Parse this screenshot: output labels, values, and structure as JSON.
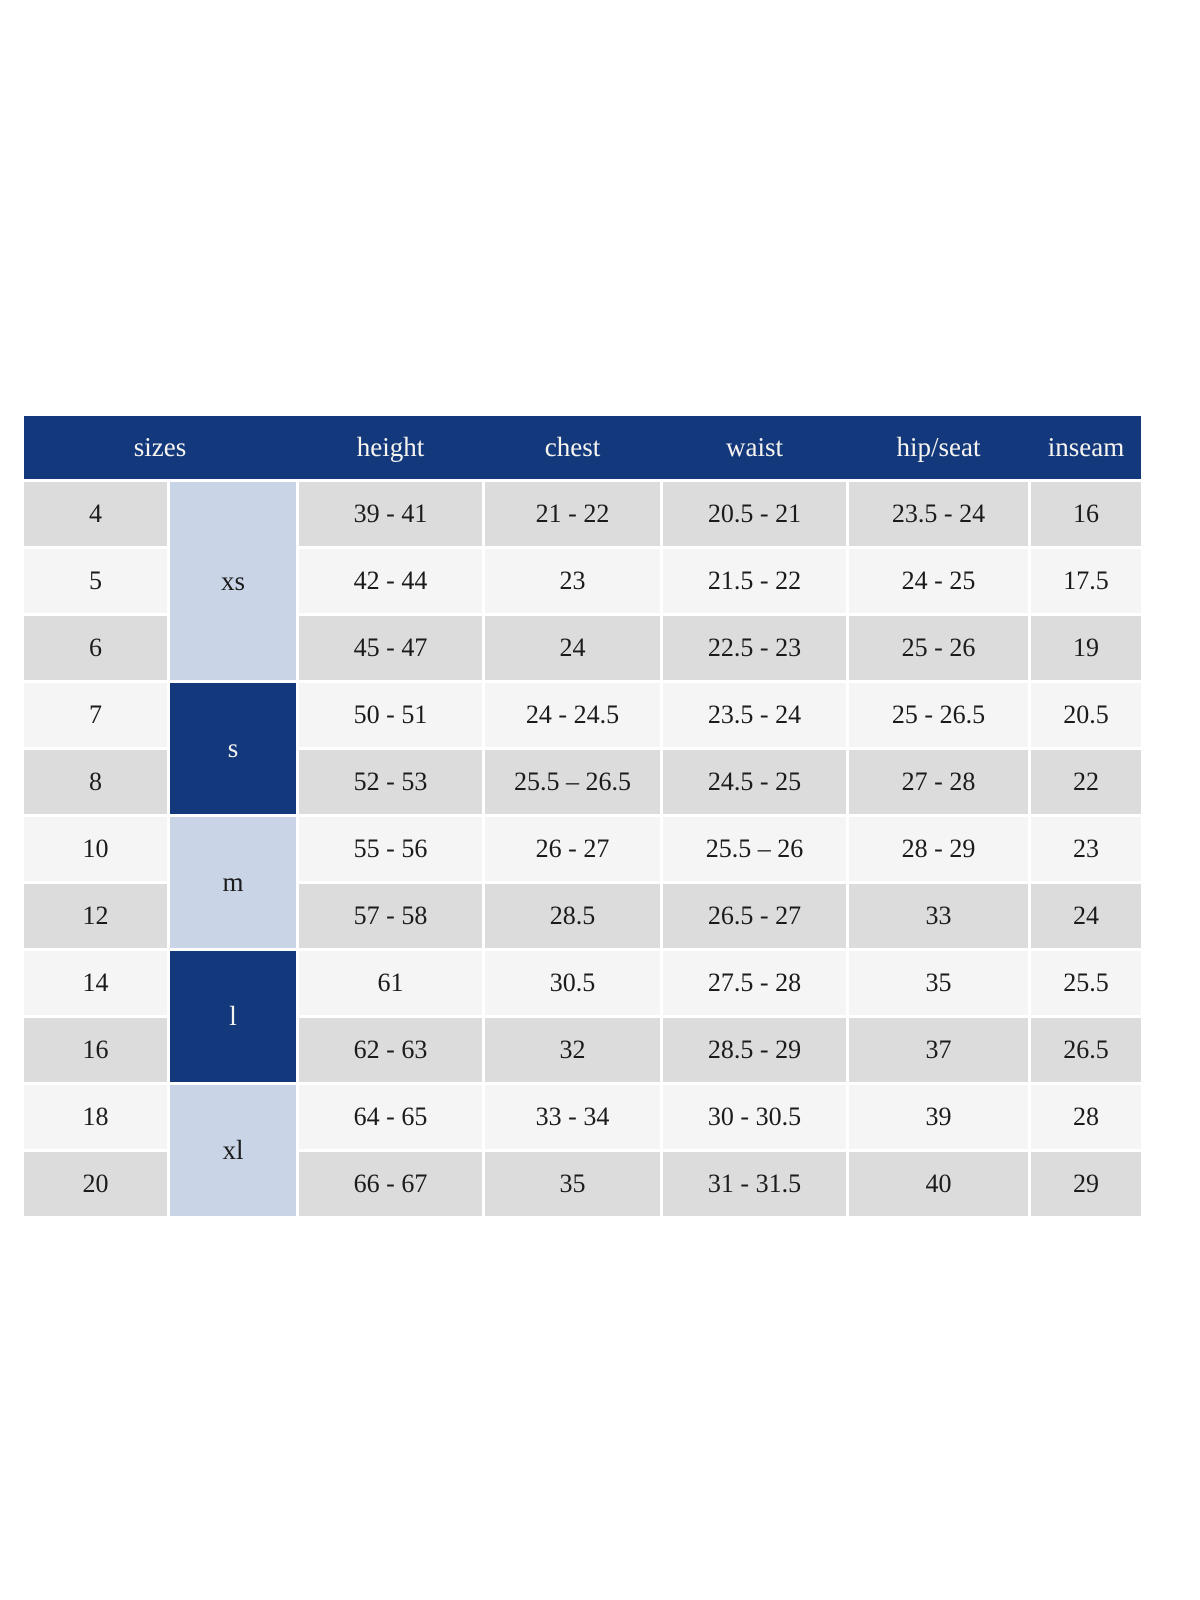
{
  "table": {
    "header": {
      "sizes_label": "sizes",
      "columns": [
        "height",
        "chest",
        "waist",
        "hip/seat",
        "inseam"
      ]
    },
    "groups": [
      {
        "label": "xs",
        "style": "light-blue",
        "covers_sizes": [
          "4",
          "5",
          "6"
        ]
      },
      {
        "label": "s",
        "style": "navy",
        "covers_sizes": [
          "7",
          "8"
        ]
      },
      {
        "label": "m",
        "style": "light-blue",
        "covers_sizes": [
          "10",
          "12"
        ]
      },
      {
        "label": "l",
        "style": "navy",
        "covers_sizes": [
          "14",
          "16"
        ]
      },
      {
        "label": "xl",
        "style": "light-blue",
        "covers_sizes": [
          "18",
          "20"
        ]
      }
    ],
    "rows": [
      {
        "size": "4",
        "height": "39 - 41",
        "chest": "21 - 22",
        "waist": "20.5 - 21",
        "hip_seat": "23.5 - 24",
        "inseam": "16"
      },
      {
        "size": "5",
        "height": "42 - 44",
        "chest": "23",
        "waist": "21.5 - 22",
        "hip_seat": "24 - 25",
        "inseam": "17.5"
      },
      {
        "size": "6",
        "height": "45 - 47",
        "chest": "24",
        "waist": "22.5 - 23",
        "hip_seat": "25 - 26",
        "inseam": "19"
      },
      {
        "size": "7",
        "height": "50 - 51",
        "chest": "24 - 24.5",
        "waist": "23.5 - 24",
        "hip_seat": "25 - 26.5",
        "inseam": "20.5"
      },
      {
        "size": "8",
        "height": "52 - 53",
        "chest": "25.5 – 26.5",
        "waist": "24.5 - 25",
        "hip_seat": "27 - 28",
        "inseam": "22"
      },
      {
        "size": "10",
        "height": "55 - 56",
        "chest": "26 - 27",
        "waist": "25.5 – 26",
        "hip_seat": "28 - 29",
        "inseam": "23"
      },
      {
        "size": "12",
        "height": "57 - 58",
        "chest": "28.5",
        "waist": "26.5 - 27",
        "hip_seat": "33",
        "inseam": "24"
      },
      {
        "size": "14",
        "height": "61",
        "chest": "30.5",
        "waist": "27.5 - 28",
        "hip_seat": "35",
        "inseam": "25.5"
      },
      {
        "size": "16",
        "height": "62 - 63",
        "chest": "32",
        "waist": "28.5 - 29",
        "hip_seat": "37",
        "inseam": "26.5"
      },
      {
        "size": "18",
        "height": "64 - 65",
        "chest": "33 - 34",
        "waist": "30 - 30.5",
        "hip_seat": "39",
        "inseam": "28"
      },
      {
        "size": "20",
        "height": "66 - 67",
        "chest": "35",
        "waist": "31 - 31.5",
        "hip_seat": "40",
        "inseam": "29"
      }
    ],
    "colors": {
      "header_navy": "#14387c",
      "group_navy": "#14387c",
      "group_light_blue": "#c9d5e6",
      "row_gray": "#dcdcdc",
      "row_light": "#f5f5f5",
      "header_text": "#f6f4ef",
      "body_text": "#1b1b1b",
      "gap_white": "#ffffff"
    }
  }
}
